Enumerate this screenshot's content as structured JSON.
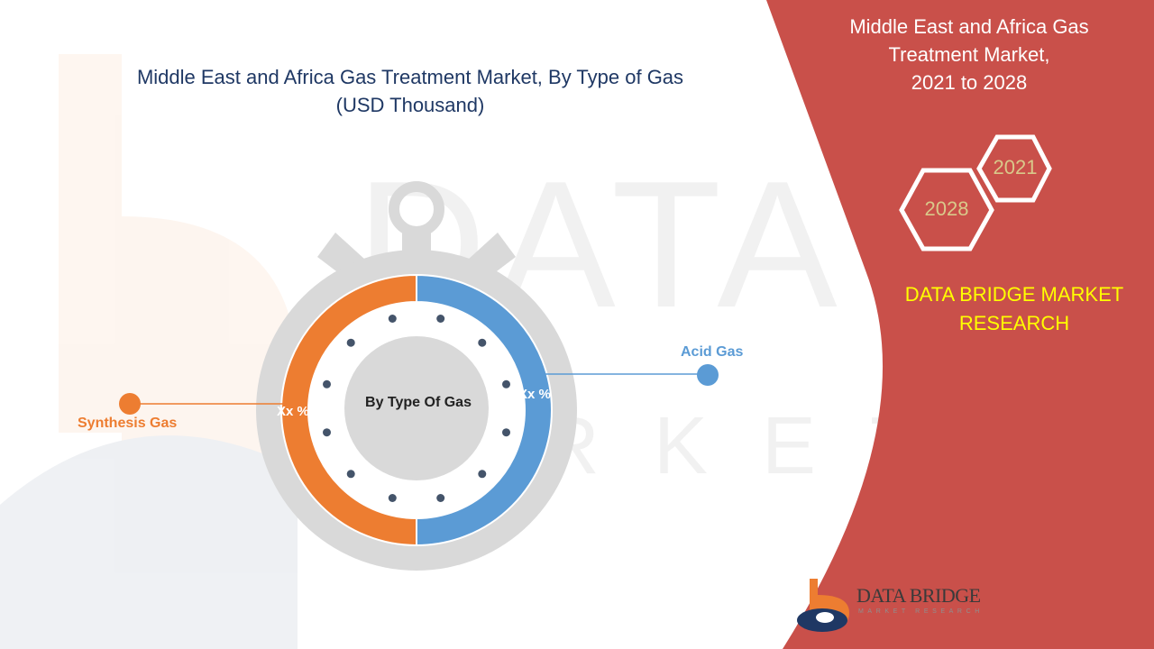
{
  "chart_data": {
    "type": "pie",
    "title": "Middle East and Africa Gas Treatment Market, By Type of Gas",
    "subtitle": "(USD Thousand)",
    "center_label": "By Type Of Gas",
    "series": [
      {
        "name": "Acid Gas",
        "value": 50,
        "label": "Xx %",
        "color": "#5b9bd5"
      },
      {
        "name": "Synthesis Gas",
        "value": 50,
        "label": "Xx %",
        "color": "#ed7d31"
      }
    ]
  },
  "side_panel": {
    "title_lines": [
      "Middle East and Africa Gas",
      "Treatment Market,",
      "2021 to 2028"
    ],
    "hex_years": [
      "2021",
      "2028"
    ],
    "brand_lines": [
      "DATA BRIDGE MARKET",
      "RESEARCH"
    ],
    "panel_color": "#c9504a"
  },
  "logo": {
    "name": "DATA BRIDGE",
    "tagline": "MARKET RESEARCH"
  }
}
